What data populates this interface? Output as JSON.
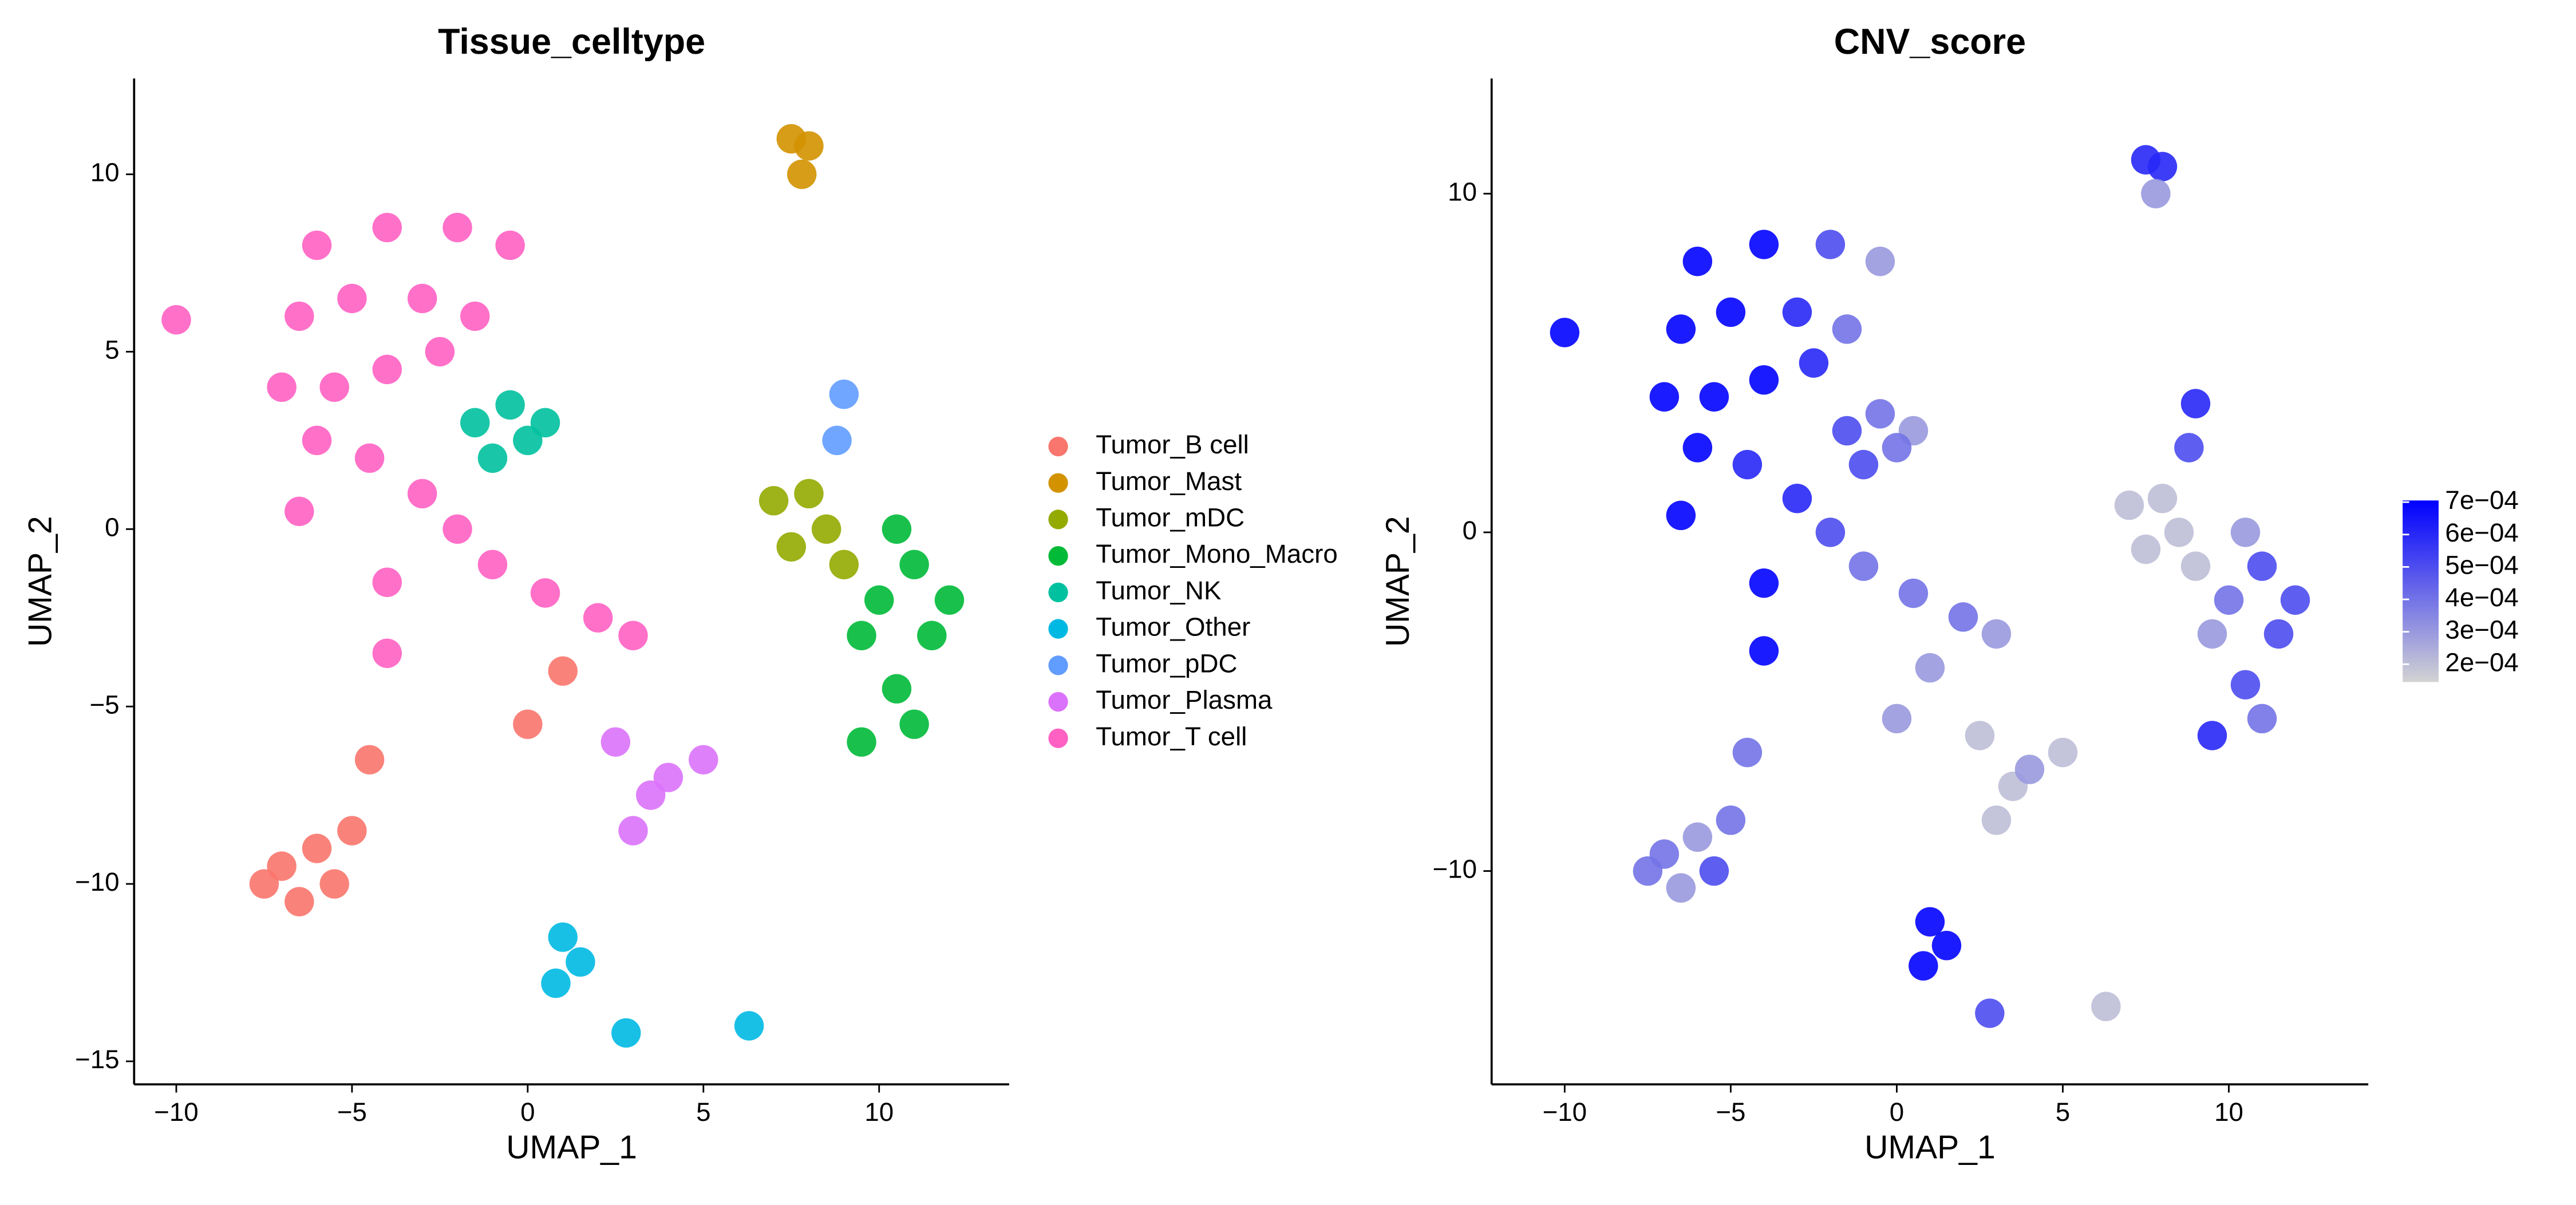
{
  "chart_data": [
    {
      "type": "scatter",
      "title": "Tissue_celltype",
      "x_label": "UMAP_1",
      "y_label": "UMAP_2",
      "xlim": [
        -11.2,
        13.7
      ],
      "ylim": [
        -15.65,
        12.7
      ],
      "xticks": [
        {
          "value": -10,
          "label": "−10"
        },
        {
          "value": -5,
          "label": "−5"
        },
        0,
        5,
        10
      ],
      "yticks": [
        {
          "value": -15,
          "label": "−15"
        },
        {
          "value": -10,
          "label": "−10"
        },
        {
          "value": -5,
          "label": "−5"
        },
        0,
        5,
        10
      ],
      "series": [
        {
          "name": "Tumor_B cell",
          "color": "#F8766D",
          "x": [
            -7,
            -6,
            -5.5,
            -6.5,
            -7.5,
            -5,
            -4.5,
            0,
            1
          ],
          "y": [
            -9.5,
            -9,
            -10,
            -10.5,
            -10,
            -8.5,
            -6.5,
            -5.5,
            -4
          ]
        },
        {
          "name": "Tumor_Mast",
          "color": "#D39200",
          "x": [
            7.5,
            8,
            7.8
          ],
          "y": [
            11,
            10.8,
            10
          ]
        },
        {
          "name": "Tumor_mDC",
          "color": "#93AA00",
          "x": [
            7,
            8.5,
            9,
            7.5,
            8
          ],
          "y": [
            0.8,
            0,
            -1,
            -0.5,
            1
          ]
        },
        {
          "name": "Tumor_Mono_Macro",
          "color": "#00BA38",
          "x": [
            10,
            11,
            11.5,
            10.5,
            9.5,
            11,
            12,
            9.5,
            10.5
          ],
          "y": [
            -2,
            -1,
            -3,
            -4.5,
            -6,
            -5.5,
            -2,
            -3,
            0
          ]
        },
        {
          "name": "Tumor_NK",
          "color": "#00C19F",
          "x": [
            -1.5,
            -0.5,
            0.5,
            -1,
            0
          ],
          "y": [
            3,
            3.5,
            3,
            2,
            2.5
          ]
        },
        {
          "name": "Tumor_Other",
          "color": "#00B9E3",
          "x": [
            1,
            1.5,
            0.8,
            2.8,
            6.3
          ],
          "y": [
            -11.5,
            -12.2,
            -12.8,
            -14.2,
            -14
          ]
        },
        {
          "name": "Tumor_pDC",
          "color": "#619CFF",
          "x": [
            9,
            8.8
          ],
          "y": [
            3.8,
            2.5
          ]
        },
        {
          "name": "Tumor_Plasma",
          "color": "#DB72FB",
          "x": [
            2.5,
            3.5,
            3,
            4,
            5
          ],
          "y": [
            -6,
            -7.5,
            -8.5,
            -7,
            -6.5
          ]
        },
        {
          "name": "Tumor_T cell",
          "color": "#FF61C3",
          "x": [
            -6,
            -4,
            -2,
            -0.5,
            -6.5,
            -5,
            -3,
            -1.5,
            -7,
            -5.5,
            -4,
            -2.5,
            -6,
            -4.5,
            -3,
            -2,
            -1,
            0.5,
            2,
            3,
            -4,
            -4,
            -6.5,
            -10
          ],
          "y": [
            8,
            8.5,
            8.5,
            8,
            6,
            6.5,
            6.5,
            6,
            4,
            4,
            4.5,
            5,
            2.5,
            2,
            1,
            0,
            -1,
            -1.8,
            -2.5,
            -3,
            -1.5,
            -3.5,
            0.5,
            5.9
          ]
        }
      ]
    },
    {
      "type": "scatter",
      "title": "CNV_score",
      "x_label": "UMAP_1",
      "y_label": "UMAP_2",
      "xlim": [
        -12.2,
        14.2
      ],
      "ylim": [
        -16.3,
        13.4
      ],
      "xticks": [
        {
          "value": -10,
          "label": "−10"
        },
        {
          "value": -5,
          "label": "−5"
        },
        0,
        5,
        10
      ],
      "yticks": [
        {
          "value": -10,
          "label": "−10"
        },
        0,
        10
      ],
      "x": [
        -7,
        -6,
        -5.5,
        -6.5,
        -7.5,
        -5,
        -4.5,
        0,
        1,
        7.5,
        8,
        7.8,
        7,
        8.5,
        9,
        7.5,
        8,
        10,
        11,
        11.5,
        10.5,
        9.5,
        11,
        12,
        9.5,
        10.5,
        -1.5,
        -0.5,
        0.5,
        -1,
        0,
        1,
        1.5,
        0.8,
        2.8,
        6.3,
        9,
        8.8,
        2.5,
        3.5,
        3,
        4,
        5,
        -6,
        -4,
        -2,
        -0.5,
        -6.5,
        -5,
        -3,
        -1.5,
        -7,
        -5.5,
        -4,
        -2.5,
        -6,
        -4.5,
        -3,
        -2,
        -1,
        0.5,
        2,
        3,
        -4,
        -4,
        -6.5,
        -10
      ],
      "y": [
        -9.5,
        -9,
        -10,
        -10.5,
        -10,
        -8.5,
        -6.5,
        -5.5,
        -4,
        11,
        10.8,
        10,
        0.8,
        0,
        -1,
        -0.5,
        1,
        -2,
        -1,
        -3,
        -4.5,
        -6,
        -5.5,
        -2,
        -3,
        0,
        3,
        3.5,
        3,
        2,
        2.5,
        -11.5,
        -12.2,
        -12.8,
        -14.2,
        -14,
        3.8,
        2.5,
        -6,
        -7.5,
        -8.5,
        -7,
        -6.5,
        8,
        8.5,
        8.5,
        8,
        6,
        6.5,
        6.5,
        6,
        4,
        4,
        4.5,
        5,
        2.5,
        2,
        1,
        0,
        -1,
        -1.8,
        -2.5,
        -3,
        -1.5,
        -3.5,
        0.5,
        5.9
      ],
      "values": [
        0.0004,
        0.0003,
        0.0005,
        0.0003,
        0.0004,
        0.0004,
        0.0004,
        0.0003,
        0.0003,
        0.0006,
        0.0006,
        0.0003,
        0.0002,
        0.0002,
        0.0002,
        0.0002,
        0.0002,
        0.0004,
        0.0005,
        0.0005,
        0.0005,
        0.0006,
        0.0004,
        0.0005,
        0.0003,
        0.0003,
        0.0005,
        0.0004,
        0.0003,
        0.0005,
        0.0004,
        0.0007,
        0.0007,
        0.0007,
        0.0005,
        0.0002,
        0.0006,
        0.0005,
        0.0002,
        0.0002,
        0.0002,
        0.0003,
        0.0002,
        0.0007,
        0.0007,
        0.0005,
        0.0003,
        0.0007,
        0.0007,
        0.0006,
        0.0004,
        0.0007,
        0.0007,
        0.0007,
        0.0006,
        0.0007,
        0.0006,
        0.0006,
        0.0005,
        0.0004,
        0.0004,
        0.0004,
        0.0003,
        0.0007,
        0.0007,
        0.0007,
        0.0007
      ],
      "color_scale": {
        "colors": [
          "#D3D3D3",
          "#0000FF"
        ],
        "lim": [
          0.000145,
          0.000705
        ],
        "ticks": [
          {
            "value": 0.0007,
            "label": "7e−04"
          },
          {
            "value": 0.0006,
            "label": "6e−04"
          },
          {
            "value": 0.0005,
            "label": "5e−04"
          },
          {
            "value": 0.0004,
            "label": "4e−04"
          },
          {
            "value": 0.0003,
            "label": "3e−04"
          },
          {
            "value": 0.0002,
            "label": "2e−04"
          }
        ]
      }
    }
  ]
}
